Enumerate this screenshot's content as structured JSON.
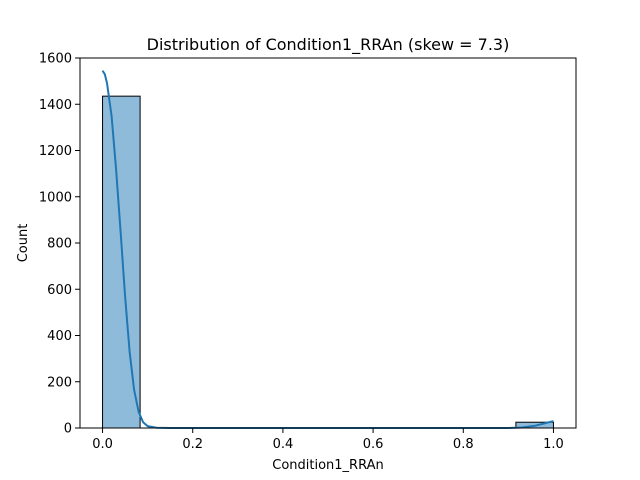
{
  "chart_data": {
    "type": "bar",
    "title": "Distribution of Condition1_RRAn (skew = 7.3)",
    "xlabel": "Condition1_RRAn",
    "ylabel": "Count",
    "xlim": [
      -0.05,
      1.05
    ],
    "ylim": [
      0,
      1600
    ],
    "x_ticks": [
      "0.0",
      "0.2",
      "0.4",
      "0.6",
      "0.8",
      "1.0"
    ],
    "y_ticks": [
      "0",
      "200",
      "400",
      "600",
      "800",
      "1000",
      "1200",
      "1400",
      "1600"
    ],
    "bins": [
      {
        "x0": 0.0,
        "x1": 0.0833,
        "count": 1435
      },
      {
        "x0": 0.0833,
        "x1": 0.1667,
        "count": 0
      },
      {
        "x0": 0.1667,
        "x1": 0.25,
        "count": 0
      },
      {
        "x0": 0.25,
        "x1": 0.3333,
        "count": 0
      },
      {
        "x0": 0.3333,
        "x1": 0.4167,
        "count": 0
      },
      {
        "x0": 0.4167,
        "x1": 0.5,
        "count": 0
      },
      {
        "x0": 0.5,
        "x1": 0.5833,
        "count": 0
      },
      {
        "x0": 0.5833,
        "x1": 0.6667,
        "count": 0
      },
      {
        "x0": 0.6667,
        "x1": 0.75,
        "count": 0
      },
      {
        "x0": 0.75,
        "x1": 0.8333,
        "count": 0
      },
      {
        "x0": 0.8333,
        "x1": 0.9167,
        "count": 0
      },
      {
        "x0": 0.9167,
        "x1": 1.0,
        "count": 25
      }
    ],
    "kde": {
      "x": [
        0.0,
        0.005,
        0.01,
        0.02,
        0.03,
        0.04,
        0.05,
        0.06,
        0.07,
        0.08,
        0.09,
        0.1,
        0.12,
        0.15,
        0.2,
        0.5,
        0.8,
        0.9,
        0.93,
        0.96,
        0.98,
        1.0
      ],
      "y": [
        1545,
        1530,
        1490,
        1350,
        1120,
        850,
        570,
        330,
        165,
        70,
        25,
        8,
        1,
        0,
        0,
        0,
        0,
        0,
        2,
        10,
        20,
        30
      ]
    },
    "grid": false,
    "colors": {
      "bar_fill": "#8fbbda",
      "bar_edge": "#000000",
      "kde_line": "#1f77b4"
    }
  }
}
